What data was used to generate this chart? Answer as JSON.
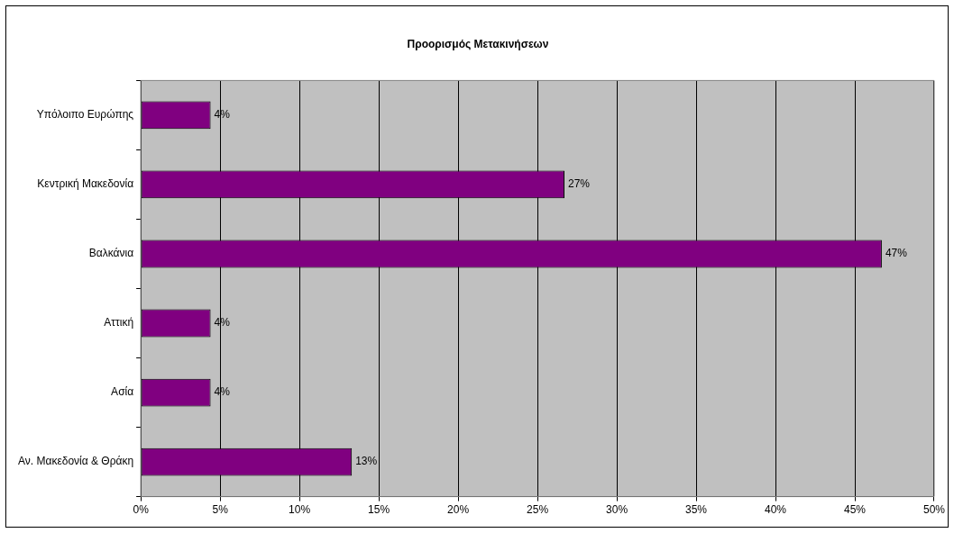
{
  "chart_data": {
    "type": "bar",
    "orientation": "horizontal",
    "title": "Προορισμός Μετακινήσεων",
    "categories": [
      "Υπόλοιπο Ευρώπης",
      "Κεντρική Μακεδονία",
      "Βαλκάνια",
      "Αττική",
      "Ασία",
      "Αν. Μακεδονία & Θράκη"
    ],
    "values": [
      4.4,
      26.7,
      46.7,
      4.4,
      4.4,
      13.3
    ],
    "value_labels": [
      "4%",
      "27%",
      "47%",
      "4%",
      "4%",
      "13%"
    ],
    "color": "#800080",
    "xlim": [
      0,
      50
    ],
    "xticks": [
      {
        "value": 0,
        "label": "0%"
      },
      {
        "value": 5,
        "label": "5%"
      },
      {
        "value": 10,
        "label": "10%"
      },
      {
        "value": 15,
        "label": "15%"
      },
      {
        "value": 20,
        "label": "20%"
      },
      {
        "value": 25,
        "label": "25%"
      },
      {
        "value": 30,
        "label": "30%"
      },
      {
        "value": 35,
        "label": "35%"
      },
      {
        "value": 40,
        "label": "40%"
      },
      {
        "value": 45,
        "label": "45%"
      },
      {
        "value": 50,
        "label": "50%"
      }
    ],
    "grid": "x",
    "legend": false
  }
}
